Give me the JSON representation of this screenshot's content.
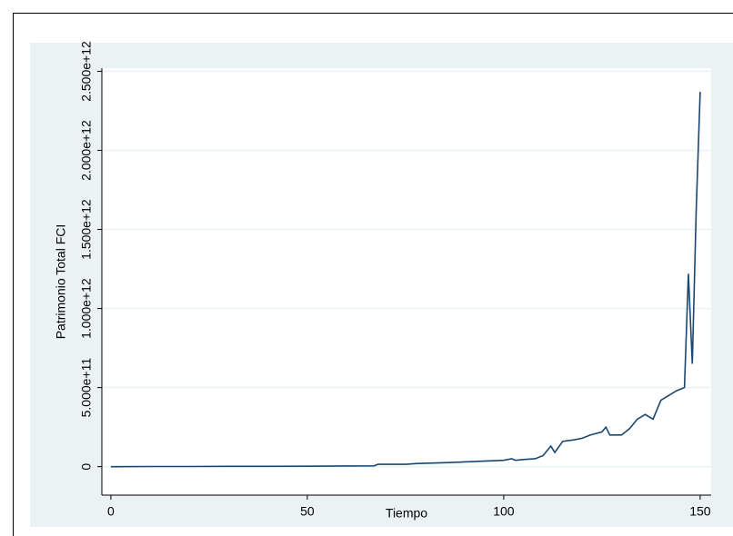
{
  "chart_data": {
    "type": "line",
    "x_label": "Tiempo",
    "y_label": "Patrimonio Total FCI",
    "x": [
      0,
      10,
      20,
      30,
      40,
      50,
      60,
      67,
      68,
      75,
      78,
      85,
      90,
      95,
      100,
      102,
      103,
      105,
      108,
      110,
      112,
      113,
      115,
      118,
      120,
      122,
      125,
      126,
      127,
      130,
      132,
      134,
      136,
      138,
      140,
      142,
      144,
      146,
      147,
      148,
      149,
      150
    ],
    "series": [
      {
        "color": "#1a476f",
        "values": [
          0,
          1000000000.0,
          1000000000.0,
          2000000000.0,
          2000000000.0,
          3000000000.0,
          4000000000.0,
          5000000000.0,
          15000000000.0,
          15000000000.0,
          20000000000.0,
          25000000000.0,
          30000000000.0,
          35000000000.0,
          40000000000.0,
          50000000000.0,
          40000000000.0,
          45000000000.0,
          50000000000.0,
          70000000000.0,
          130000000000.0,
          90000000000.0,
          160000000000.0,
          170000000000.0,
          180000000000.0,
          200000000000.0,
          220000000000.0,
          250000000000.0,
          200000000000.0,
          200000000000.0,
          240000000000.0,
          300000000000.0,
          330000000000.0,
          300000000000.0,
          420000000000.0,
          450000000000.0,
          480000000000.0,
          500000000000.0,
          1220000000000.0,
          650000000000.0,
          1630000000000.0,
          2370000000000.0
        ]
      }
    ],
    "xlim": [
      -2.3,
      152.8
    ],
    "ylim": [
      -180000000000.0,
      2520000000000.0
    ],
    "xticks": [
      0,
      50,
      100,
      150
    ],
    "yticks": [
      0,
      {
        "value": 500000000000,
        "label": "5.000e+11"
      },
      {
        "value": 1000000000000,
        "label": "1.000e+12"
      },
      {
        "value": 1500000000000,
        "label": "1.500e+12"
      },
      {
        "value": 2000000000000,
        "label": "2.000e+12"
      },
      {
        "value": 2500000000000,
        "label": "2.500e+12"
      }
    ],
    "grid": true
  }
}
